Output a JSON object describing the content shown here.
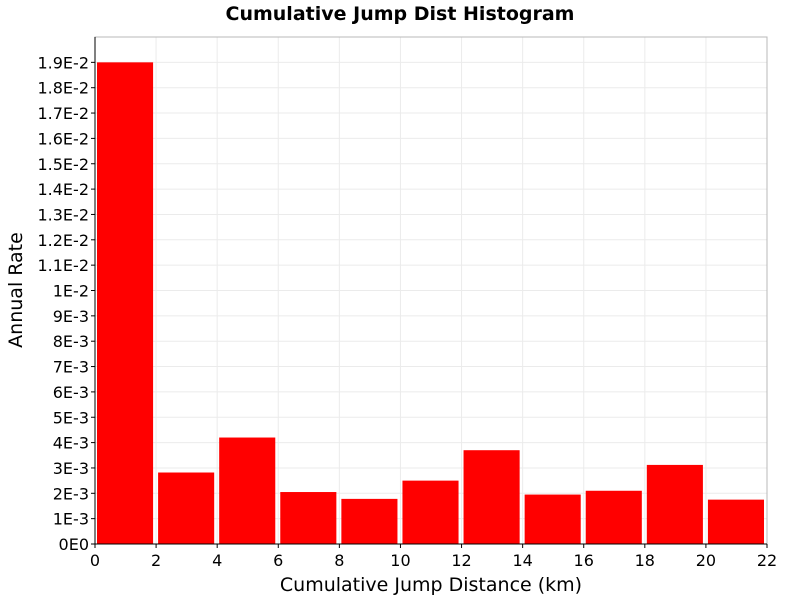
{
  "chart_data": {
    "type": "bar",
    "title": "Cumulative Jump Dist Histogram",
    "xlabel": "Cumulative Jump Distance (km)",
    "ylabel": "Annual Rate",
    "xlim": [
      0,
      22
    ],
    "ylim": [
      0,
      0.02
    ],
    "x_ticks": [
      0,
      2,
      4,
      6,
      8,
      10,
      12,
      14,
      16,
      18,
      20,
      22
    ],
    "y_ticks": [
      0,
      0.001,
      0.002,
      0.003,
      0.004,
      0.005,
      0.006,
      0.007,
      0.008,
      0.009,
      0.01,
      0.011,
      0.012,
      0.013,
      0.014,
      0.015,
      0.016,
      0.017,
      0.018,
      0.019
    ],
    "y_tick_labels": [
      "0E0",
      "1E-3",
      "2E-3",
      "3E-3",
      "4E-3",
      "5E-3",
      "6E-3",
      "7E-3",
      "8E-3",
      "9E-3",
      "1E-2",
      "1.1E-2",
      "1.2E-2",
      "1.3E-2",
      "1.4E-2",
      "1.5E-2",
      "1.6E-2",
      "1.7E-2",
      "1.8E-2",
      "1.9E-2"
    ],
    "grid": true,
    "bar_color": "#ff0000",
    "bins": [
      {
        "x_start": 0,
        "x_end": 2,
        "value": 0.019
      },
      {
        "x_start": 2,
        "x_end": 4,
        "value": 0.00282
      },
      {
        "x_start": 4,
        "x_end": 6,
        "value": 0.0042
      },
      {
        "x_start": 6,
        "x_end": 8,
        "value": 0.00205
      },
      {
        "x_start": 8,
        "x_end": 10,
        "value": 0.00178
      },
      {
        "x_start": 10,
        "x_end": 12,
        "value": 0.0025
      },
      {
        "x_start": 12,
        "x_end": 14,
        "value": 0.0037
      },
      {
        "x_start": 14,
        "x_end": 16,
        "value": 0.00195
      },
      {
        "x_start": 16,
        "x_end": 18,
        "value": 0.0021
      },
      {
        "x_start": 18,
        "x_end": 20,
        "value": 0.00312
      },
      {
        "x_start": 20,
        "x_end": 22,
        "value": 0.00175
      }
    ]
  }
}
